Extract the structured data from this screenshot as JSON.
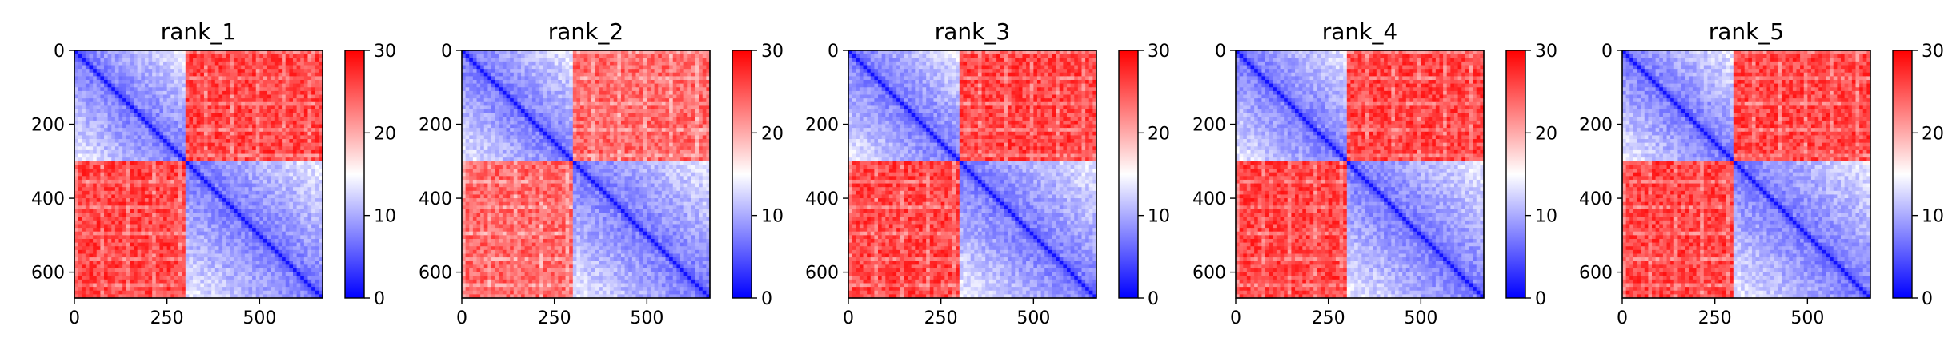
{
  "figure": {
    "panels": [
      {
        "title": "rank_1"
      },
      {
        "title": "rank_2"
      },
      {
        "title": "rank_3"
      },
      {
        "title": "rank_4"
      },
      {
        "title": "rank_5"
      }
    ]
  },
  "chart_data": [
    {
      "type": "heatmap",
      "title": "rank_1",
      "xlabel": "",
      "ylabel": "",
      "xlim": [
        0,
        670
      ],
      "ylim": [
        670,
        0
      ],
      "xticks": [
        0,
        250,
        500
      ],
      "yticks": [
        0,
        200,
        400,
        600
      ],
      "colorbar": {
        "range": [
          0,
          30
        ],
        "ticks": [
          0,
          10,
          20,
          30
        ],
        "colormap": "bwr",
        "low_color": "#0000ff",
        "mid_color": "#ffffff",
        "high_color": "#ff0000"
      },
      "matrix_size": 670,
      "blocks": [
        {
          "start": 0,
          "end": 300
        },
        {
          "start": 300,
          "end": 670
        }
      ],
      "diagonal_value": 0,
      "within_block_value": 10,
      "off_block_value": 30
    },
    {
      "type": "heatmap",
      "title": "rank_2",
      "xlabel": "",
      "ylabel": "",
      "xlim": [
        0,
        670
      ],
      "ylim": [
        670,
        0
      ],
      "xticks": [
        0,
        250,
        500
      ],
      "yticks": [
        0,
        200,
        400,
        600
      ],
      "colorbar": {
        "range": [
          0,
          30
        ],
        "ticks": [
          0,
          10,
          20,
          30
        ],
        "colormap": "bwr",
        "low_color": "#0000ff",
        "mid_color": "#ffffff",
        "high_color": "#ff0000"
      },
      "matrix_size": 670,
      "blocks": [
        {
          "start": 0,
          "end": 300
        },
        {
          "start": 300,
          "end": 670
        }
      ],
      "diagonal_value": 0,
      "within_block_value": 10,
      "off_block_value": 28
    },
    {
      "type": "heatmap",
      "title": "rank_3",
      "xlabel": "",
      "ylabel": "",
      "xlim": [
        0,
        670
      ],
      "ylim": [
        670,
        0
      ],
      "xticks": [
        0,
        250,
        500
      ],
      "yticks": [
        0,
        200,
        400,
        600
      ],
      "colorbar": {
        "range": [
          0,
          30
        ],
        "ticks": [
          0,
          10,
          20,
          30
        ],
        "colormap": "bwr",
        "low_color": "#0000ff",
        "mid_color": "#ffffff",
        "high_color": "#ff0000"
      },
      "matrix_size": 670,
      "blocks": [
        {
          "start": 0,
          "end": 300
        },
        {
          "start": 300,
          "end": 670
        }
      ],
      "diagonal_value": 0,
      "within_block_value": 10,
      "off_block_value": 30
    },
    {
      "type": "heatmap",
      "title": "rank_4",
      "xlabel": "",
      "ylabel": "",
      "xlim": [
        0,
        670
      ],
      "ylim": [
        670,
        0
      ],
      "xticks": [
        0,
        250,
        500
      ],
      "yticks": [
        0,
        200,
        400,
        600
      ],
      "colorbar": {
        "range": [
          0,
          30
        ],
        "ticks": [
          0,
          10,
          20,
          30
        ],
        "colormap": "bwr",
        "low_color": "#0000ff",
        "mid_color": "#ffffff",
        "high_color": "#ff0000"
      },
      "matrix_size": 670,
      "blocks": [
        {
          "start": 0,
          "end": 300
        },
        {
          "start": 300,
          "end": 670
        }
      ],
      "diagonal_value": 0,
      "within_block_value": 10,
      "off_block_value": 30
    },
    {
      "type": "heatmap",
      "title": "rank_5",
      "xlabel": "",
      "ylabel": "",
      "xlim": [
        0,
        670
      ],
      "ylim": [
        670,
        0
      ],
      "xticks": [
        0,
        250,
        500
      ],
      "yticks": [
        0,
        200,
        400,
        600
      ],
      "colorbar": {
        "range": [
          0,
          30
        ],
        "ticks": [
          0,
          10,
          20,
          30
        ],
        "colormap": "bwr",
        "low_color": "#0000ff",
        "mid_color": "#ffffff",
        "high_color": "#ff0000"
      },
      "matrix_size": 670,
      "blocks": [
        {
          "start": 0,
          "end": 300
        },
        {
          "start": 300,
          "end": 670
        }
      ],
      "diagonal_value": 0,
      "within_block_value": 10,
      "off_block_value": 30
    }
  ]
}
